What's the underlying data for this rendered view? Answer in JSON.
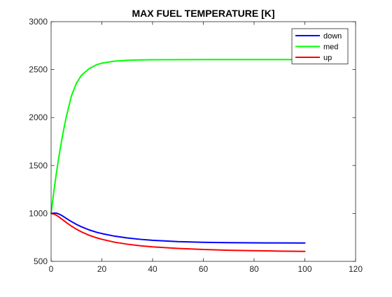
{
  "chart_data": {
    "type": "line",
    "title": "MAX FUEL TEMPERATURE [K]",
    "xlabel": "",
    "ylabel": "",
    "xlim": [
      0,
      120
    ],
    "ylim": [
      500,
      3000
    ],
    "xticks": [
      0,
      20,
      40,
      60,
      80,
      100,
      120
    ],
    "yticks": [
      500,
      1000,
      1500,
      2000,
      2500,
      3000
    ],
    "grid": false,
    "legend_position": "top-right",
    "x": [
      0,
      1,
      2,
      3,
      4,
      5,
      6,
      8,
      10,
      12,
      15,
      18,
      20,
      25,
      30,
      35,
      40,
      50,
      60,
      70,
      80,
      90,
      100
    ],
    "series": [
      {
        "name": "down",
        "color": "#0000ff",
        "values": [
          1000,
          1003,
          1003,
          995,
          982,
          965,
          948,
          915,
          885,
          860,
          828,
          803,
          790,
          763,
          744,
          730,
          720,
          706,
          699,
          695,
          693,
          692,
          691
        ]
      },
      {
        "name": "med",
        "color": "#00ff00",
        "values": [
          1000,
          1213,
          1405,
          1580,
          1738,
          1880,
          2010,
          2225,
          2360,
          2442,
          2510,
          2552,
          2567,
          2588,
          2597,
          2601,
          2603,
          2604,
          2605,
          2605,
          2605,
          2605,
          2605
        ]
      },
      {
        "name": "up",
        "color": "#ff0000",
        "values": [
          1000,
          994,
          982,
          965,
          945,
          925,
          905,
          868,
          835,
          807,
          772,
          745,
          730,
          700,
          679,
          663,
          651,
          635,
          624,
          616,
          611,
          607,
          604
        ]
      }
    ]
  }
}
